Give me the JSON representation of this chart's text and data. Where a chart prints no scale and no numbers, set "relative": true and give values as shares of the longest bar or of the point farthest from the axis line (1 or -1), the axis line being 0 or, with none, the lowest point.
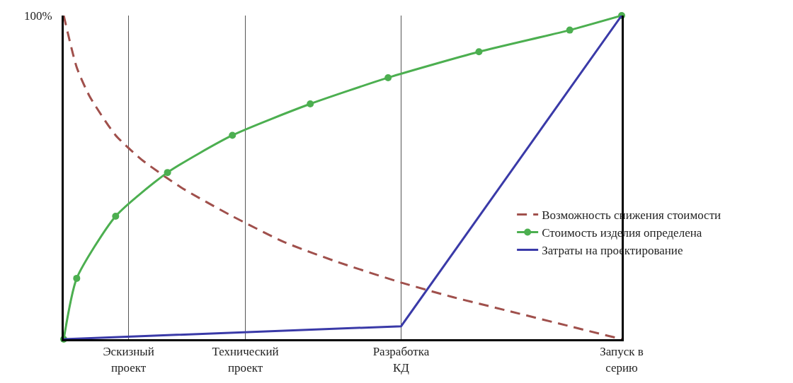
{
  "chart_data": {
    "type": "line",
    "relative": true,
    "categories": [
      null,
      null,
      null,
      null,
      null,
      "Эскизный проект",
      null,
      null,
      null,
      null,
      null,
      null,
      null,
      null,
      "Технический проект",
      null,
      null,
      null,
      null,
      null,
      null,
      null,
      null,
      null,
      null,
      null,
      "Разработка КД",
      null,
      null,
      null,
      null,
      null,
      null,
      null,
      null,
      null,
      null,
      null,
      null,
      null,
      null,
      null,
      null,
      "Запуск в серию"
    ],
    "grid": "x",
    "legend": "right",
    "annotations": [
      "100%"
    ],
    "series": [
      {
        "name": "Возможность снижения стоимости",
        "color": "#a0504c",
        "line_style": "dashed",
        "values": [
          1,
          0.84,
          0.75,
          null,
          0.63,
          null,
          0.555,
          null,
          null,
          0.47,
          null,
          null,
          null,
          0.38,
          null,
          null,
          null,
          0.3,
          null,
          null,
          null,
          0.24,
          null,
          null,
          null,
          null,
          0.175,
          null,
          null,
          null,
          0.13,
          null,
          null,
          null,
          0.09,
          null,
          null,
          null,
          null,
          0.04,
          null,
          null,
          null,
          0
        ]
      },
      {
        "name": "Стоимость изделия определена",
        "color": "#4caf50",
        "marker": "circle",
        "values": [
          0,
          0.188,
          null,
          null,
          0.38,
          null,
          null,
          null,
          0.515,
          null,
          null,
          null,
          null,
          0.63,
          null,
          null,
          null,
          null,
          null,
          0.727,
          null,
          null,
          null,
          null,
          null,
          0.808,
          null,
          null,
          null,
          null,
          null,
          null,
          0.888,
          null,
          null,
          null,
          null,
          null,
          null,
          0.955,
          null,
          null,
          null,
          1
        ]
      },
      {
        "name": "Затраты на проектирование",
        "color": "#3a3aa8",
        "values": [
          0,
          null,
          null,
          null,
          null,
          null,
          null,
          null,
          null,
          null,
          null,
          null,
          null,
          null,
          null,
          null,
          null,
          null,
          null,
          null,
          null,
          null,
          null,
          null,
          null,
          null,
          0.04,
          null,
          null,
          null,
          null,
          null,
          null,
          null,
          null,
          null,
          null,
          null,
          null,
          null,
          null,
          null,
          null,
          1
        ]
      }
    ]
  }
}
